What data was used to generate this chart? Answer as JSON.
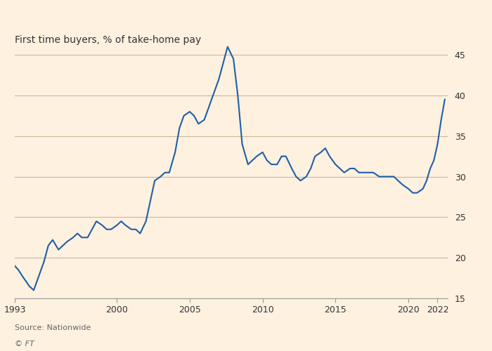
{
  "title": "First time buyers, % of take-home pay",
  "source": "Source: Nationwide",
  "watermark": "© FT",
  "line_color": "#1f5fa6",
  "background_color": "#FFF1E0",
  "plot_bg_color": "#FFF1E0",
  "grid_color": "#c8b89a",
  "header_color": "#000000",
  "xlim": [
    1993,
    2022.7
  ],
  "ylim": [
    15,
    47
  ],
  "yticks": [
    15,
    20,
    25,
    30,
    35,
    40,
    45
  ],
  "xticks": [
    1993,
    2000,
    2005,
    2010,
    2015,
    2020,
    2022
  ],
  "xtick_labels": [
    "1993",
    "2000",
    "2005",
    "2010",
    "2015",
    "2020",
    "2022"
  ],
  "data": [
    [
      1993.0,
      19.0
    ],
    [
      1993.25,
      18.5
    ],
    [
      1993.5,
      17.8
    ],
    [
      1994.0,
      16.5
    ],
    [
      1994.3,
      16.0
    ],
    [
      1994.6,
      17.5
    ],
    [
      1995.0,
      19.5
    ],
    [
      1995.3,
      21.5
    ],
    [
      1995.6,
      22.2
    ],
    [
      1996.0,
      21.0
    ],
    [
      1996.3,
      21.5
    ],
    [
      1996.6,
      22.0
    ],
    [
      1997.0,
      22.5
    ],
    [
      1997.3,
      23.0
    ],
    [
      1997.6,
      22.5
    ],
    [
      1998.0,
      22.5
    ],
    [
      1998.3,
      23.5
    ],
    [
      1998.6,
      24.5
    ],
    [
      1999.0,
      24.0
    ],
    [
      1999.3,
      23.5
    ],
    [
      1999.6,
      23.5
    ],
    [
      2000.0,
      24.0
    ],
    [
      2000.3,
      24.5
    ],
    [
      2000.6,
      24.0
    ],
    [
      2001.0,
      23.5
    ],
    [
      2001.3,
      23.5
    ],
    [
      2001.6,
      23.0
    ],
    [
      2002.0,
      24.5
    ],
    [
      2002.3,
      27.0
    ],
    [
      2002.6,
      29.5
    ],
    [
      2003.0,
      30.0
    ],
    [
      2003.3,
      30.5
    ],
    [
      2003.6,
      30.5
    ],
    [
      2004.0,
      33.0
    ],
    [
      2004.3,
      36.0
    ],
    [
      2004.6,
      37.5
    ],
    [
      2005.0,
      38.0
    ],
    [
      2005.3,
      37.5
    ],
    [
      2005.6,
      36.5
    ],
    [
      2006.0,
      37.0
    ],
    [
      2006.3,
      38.5
    ],
    [
      2006.6,
      40.0
    ],
    [
      2007.0,
      42.0
    ],
    [
      2007.3,
      44.0
    ],
    [
      2007.6,
      46.0
    ],
    [
      2008.0,
      44.5
    ],
    [
      2008.3,
      40.0
    ],
    [
      2008.6,
      34.0
    ],
    [
      2009.0,
      31.5
    ],
    [
      2009.3,
      32.0
    ],
    [
      2009.6,
      32.5
    ],
    [
      2010.0,
      33.0
    ],
    [
      2010.3,
      32.0
    ],
    [
      2010.6,
      31.5
    ],
    [
      2011.0,
      31.5
    ],
    [
      2011.3,
      32.5
    ],
    [
      2011.6,
      32.5
    ],
    [
      2012.0,
      31.0
    ],
    [
      2012.3,
      30.0
    ],
    [
      2012.6,
      29.5
    ],
    [
      2013.0,
      30.0
    ],
    [
      2013.3,
      31.0
    ],
    [
      2013.6,
      32.5
    ],
    [
      2014.0,
      33.0
    ],
    [
      2014.3,
      33.5
    ],
    [
      2014.6,
      32.5
    ],
    [
      2015.0,
      31.5
    ],
    [
      2015.3,
      31.0
    ],
    [
      2015.6,
      30.5
    ],
    [
      2016.0,
      31.0
    ],
    [
      2016.3,
      31.0
    ],
    [
      2016.6,
      30.5
    ],
    [
      2017.0,
      30.5
    ],
    [
      2017.3,
      30.5
    ],
    [
      2017.6,
      30.5
    ],
    [
      2018.0,
      30.0
    ],
    [
      2018.3,
      30.0
    ],
    [
      2018.6,
      30.0
    ],
    [
      2019.0,
      30.0
    ],
    [
      2019.3,
      29.5
    ],
    [
      2019.6,
      29.0
    ],
    [
      2020.0,
      28.5
    ],
    [
      2020.3,
      28.0
    ],
    [
      2020.6,
      28.0
    ],
    [
      2021.0,
      28.5
    ],
    [
      2021.25,
      29.5
    ],
    [
      2021.5,
      31.0
    ],
    [
      2021.75,
      32.0
    ],
    [
      2022.0,
      34.0
    ],
    [
      2022.25,
      37.0
    ],
    [
      2022.5,
      39.5
    ]
  ]
}
